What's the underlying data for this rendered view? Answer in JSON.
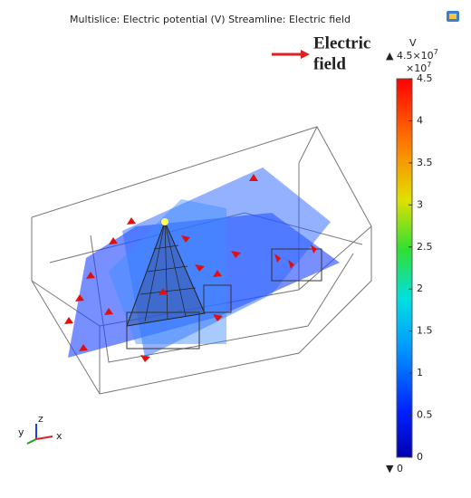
{
  "title": "Multislice: Electric potential (V)  Streamline: Electric field",
  "annotation": {
    "line1": "Electric",
    "line2": "field"
  },
  "colorbar": {
    "unit": "V",
    "max_label": {
      "base": "▲ 4.5×10",
      "exponent": "7"
    },
    "multiplier": {
      "base": "×10",
      "exponent": "7"
    },
    "min_label": "▼ 0",
    "lim": [
      0,
      4.5
    ],
    "ticks": [
      0,
      0.5,
      1,
      1.5,
      2,
      2.5,
      3,
      3.5,
      4,
      4.5
    ]
  },
  "triad": {
    "x": "x",
    "y": "y",
    "z": "z"
  }
}
